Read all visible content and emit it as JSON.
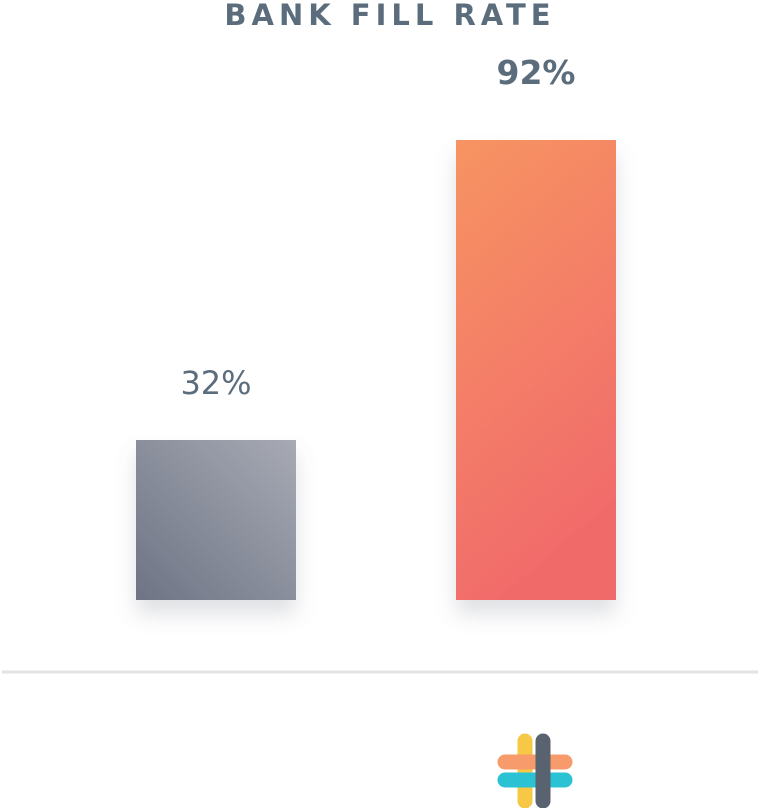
{
  "chart_data": {
    "type": "bar",
    "title": "BANK FILL RATE",
    "categories": [
      "",
      ""
    ],
    "values": [
      32,
      92
    ],
    "value_labels": [
      "32%",
      "92%"
    ],
    "ylim": [
      0,
      92
    ],
    "xlabel": "",
    "ylabel": "",
    "grid": false,
    "legend": "none",
    "series_colors": [
      {
        "from": "#a7aab4",
        "to": "#6e7485"
      },
      {
        "from": "#f79462",
        "to": "#f16b6b"
      }
    ]
  },
  "logo": {
    "icon": "hashtag-logo-icon",
    "colors": [
      "#f6c845",
      "#58636f",
      "#f79a6c",
      "#2bc2d3"
    ]
  },
  "colors": {
    "text": "#5b6d7c",
    "baseline": "#e3e3e3",
    "background": "#ffffff"
  }
}
